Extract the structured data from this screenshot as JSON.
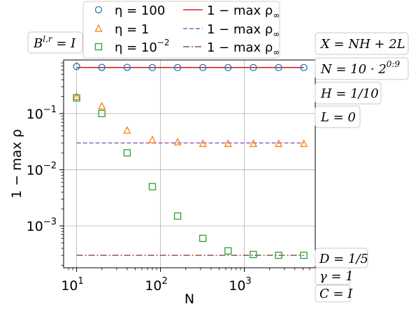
{
  "chart_data": {
    "type": "scatter",
    "xlabel": "N",
    "ylabel": "1 − max ρ",
    "xscale": "log",
    "yscale": "log",
    "xlim": [
      7.0,
      7000
    ],
    "ylim": [
      0.00018,
      0.9
    ],
    "x_ticks": [
      {
        "value": 10,
        "base": "10",
        "exp": "1"
      },
      {
        "value": 100,
        "base": "10",
        "exp": "2"
      },
      {
        "value": 1000,
        "base": "10",
        "exp": "3"
      }
    ],
    "y_ticks": [
      {
        "value": 0.1,
        "base": "10",
        "exp": "−1"
      },
      {
        "value": 0.01,
        "base": "10",
        "exp": "−2"
      },
      {
        "value": 0.001,
        "base": "10",
        "exp": "−3"
      }
    ],
    "grid": true,
    "x": [
      10,
      20,
      40,
      80,
      160,
      320,
      640,
      1280,
      2560,
      5120
    ],
    "series": [
      {
        "name": "η = 100",
        "marker": "circle",
        "color": "#1f77b4",
        "values": [
          0.69,
          0.665,
          0.665,
          0.66,
          0.66,
          0.66,
          0.66,
          0.66,
          0.66,
          0.66
        ]
      },
      {
        "name": "η = 1",
        "marker": "triangle",
        "color": "#ff7f0e",
        "values": [
          0.2,
          0.135,
          0.05,
          0.034,
          0.031,
          0.029,
          0.029,
          0.029,
          0.029,
          0.029
        ]
      },
      {
        "name": "η = 10^−2",
        "marker": "square",
        "color": "#2ca02c",
        "values": [
          0.19,
          0.1,
          0.02,
          0.005,
          0.0015,
          0.0006,
          0.00036,
          0.00031,
          0.0003,
          0.0003
        ]
      }
    ],
    "reference_lines": [
      {
        "name": "1 − max ρ∞",
        "value": 0.66,
        "color": "#d62728",
        "style": "solid"
      },
      {
        "name": "1 − max ρ∞",
        "value": 0.03,
        "color": "#9467bd",
        "style": "dashed"
      },
      {
        "name": "1 − max ρ∞",
        "value": 0.0003,
        "color": "#8c564b",
        "style": "dashdot"
      }
    ],
    "legend": {
      "placement": "top",
      "entries": [
        {
          "marker": "circle",
          "color": "#1f77b4",
          "text": "η = 100",
          "kind": "marker"
        },
        {
          "marker": "triangle",
          "color": "#ff7f0e",
          "text": "η = 1",
          "kind": "marker"
        },
        {
          "marker": "square",
          "color": "#2ca02c",
          "text": "η = 10",
          "sup": "−2",
          "kind": "marker"
        },
        {
          "color": "#d62728",
          "style": "solid",
          "text": "1 − max ρ",
          "sub": "∞",
          "kind": "line"
        },
        {
          "color": "#9467bd",
          "style": "dashed",
          "text": "1 − max ρ",
          "sub": "∞",
          "kind": "line"
        },
        {
          "color": "#8c564b",
          "style": "dashdot",
          "text": "1 − max ρ",
          "sub": "∞",
          "kind": "line"
        }
      ]
    },
    "annotations": {
      "left_box": "B^{l,r} = I",
      "right_top": [
        "X = NH + 2L",
        "N = 10 · 2^{0:9}",
        "H = 1/10",
        "L = 0"
      ],
      "right_bottom": [
        "D = 1/5",
        "γ = 1",
        "C = I"
      ]
    }
  }
}
